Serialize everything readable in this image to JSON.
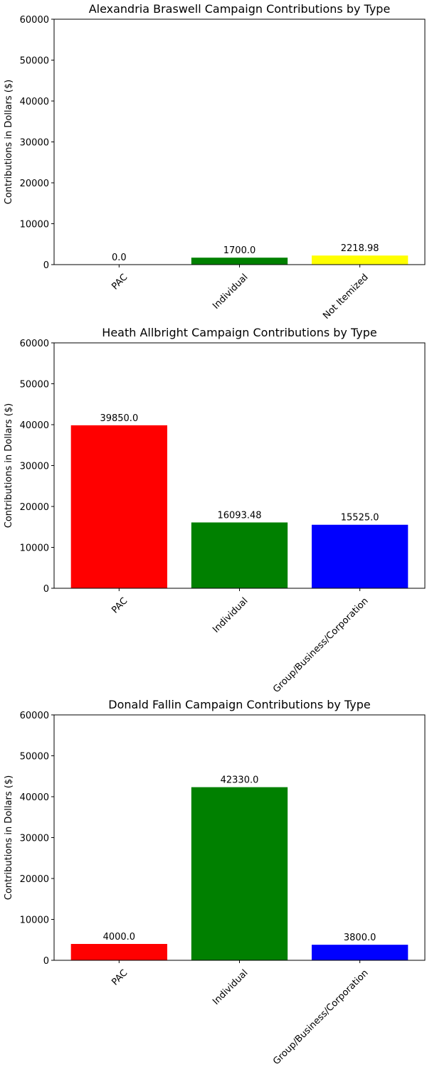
{
  "chart_data": [
    {
      "type": "bar",
      "title": "Alexandria Braswell Campaign Contributions by Type",
      "ylabel": "Contributions in Dollars ($)",
      "xlabel": "",
      "categories": [
        "PAC",
        "Individual",
        "Not Itemized"
      ],
      "values": [
        0.0,
        1700.0,
        2218.98
      ],
      "value_labels": [
        "0.0",
        "1700.0",
        "2218.98"
      ],
      "colors": [
        "#ff0000",
        "#008000",
        "#ffff00"
      ],
      "ylim": [
        0,
        60000
      ],
      "yticks": [
        0,
        10000,
        20000,
        30000,
        40000,
        50000,
        60000
      ],
      "ytick_labels": [
        "0",
        "10000",
        "20000",
        "30000",
        "40000",
        "50000",
        "60000"
      ],
      "grid": false
    },
    {
      "type": "bar",
      "title": "Heath Allbright Campaign Contributions by Type",
      "ylabel": "Contributions in Dollars ($)",
      "xlabel": "",
      "categories": [
        "PAC",
        "Individual",
        "Group/Business/Corporation"
      ],
      "values": [
        39850.0,
        16093.48,
        15525.0
      ],
      "value_labels": [
        "39850.0",
        "16093.48",
        "15525.0"
      ],
      "colors": [
        "#ff0000",
        "#008000",
        "#0000ff"
      ],
      "ylim": [
        0,
        60000
      ],
      "yticks": [
        0,
        10000,
        20000,
        30000,
        40000,
        50000,
        60000
      ],
      "ytick_labels": [
        "0",
        "10000",
        "20000",
        "30000",
        "40000",
        "50000",
        "60000"
      ],
      "grid": false
    },
    {
      "type": "bar",
      "title": "Donald Fallin Campaign Contributions by Type",
      "ylabel": "Contributions in Dollars ($)",
      "xlabel": "",
      "categories": [
        "PAC",
        "Individual",
        "Group/Business/Corporation"
      ],
      "values": [
        4000.0,
        42330.0,
        3800.0
      ],
      "value_labels": [
        "4000.0",
        "42330.0",
        "3800.0"
      ],
      "colors": [
        "#ff0000",
        "#008000",
        "#0000ff"
      ],
      "ylim": [
        0,
        60000
      ],
      "yticks": [
        0,
        10000,
        20000,
        30000,
        40000,
        50000,
        60000
      ],
      "ytick_labels": [
        "0",
        "10000",
        "20000",
        "30000",
        "40000",
        "50000",
        "60000"
      ],
      "grid": false
    }
  ]
}
